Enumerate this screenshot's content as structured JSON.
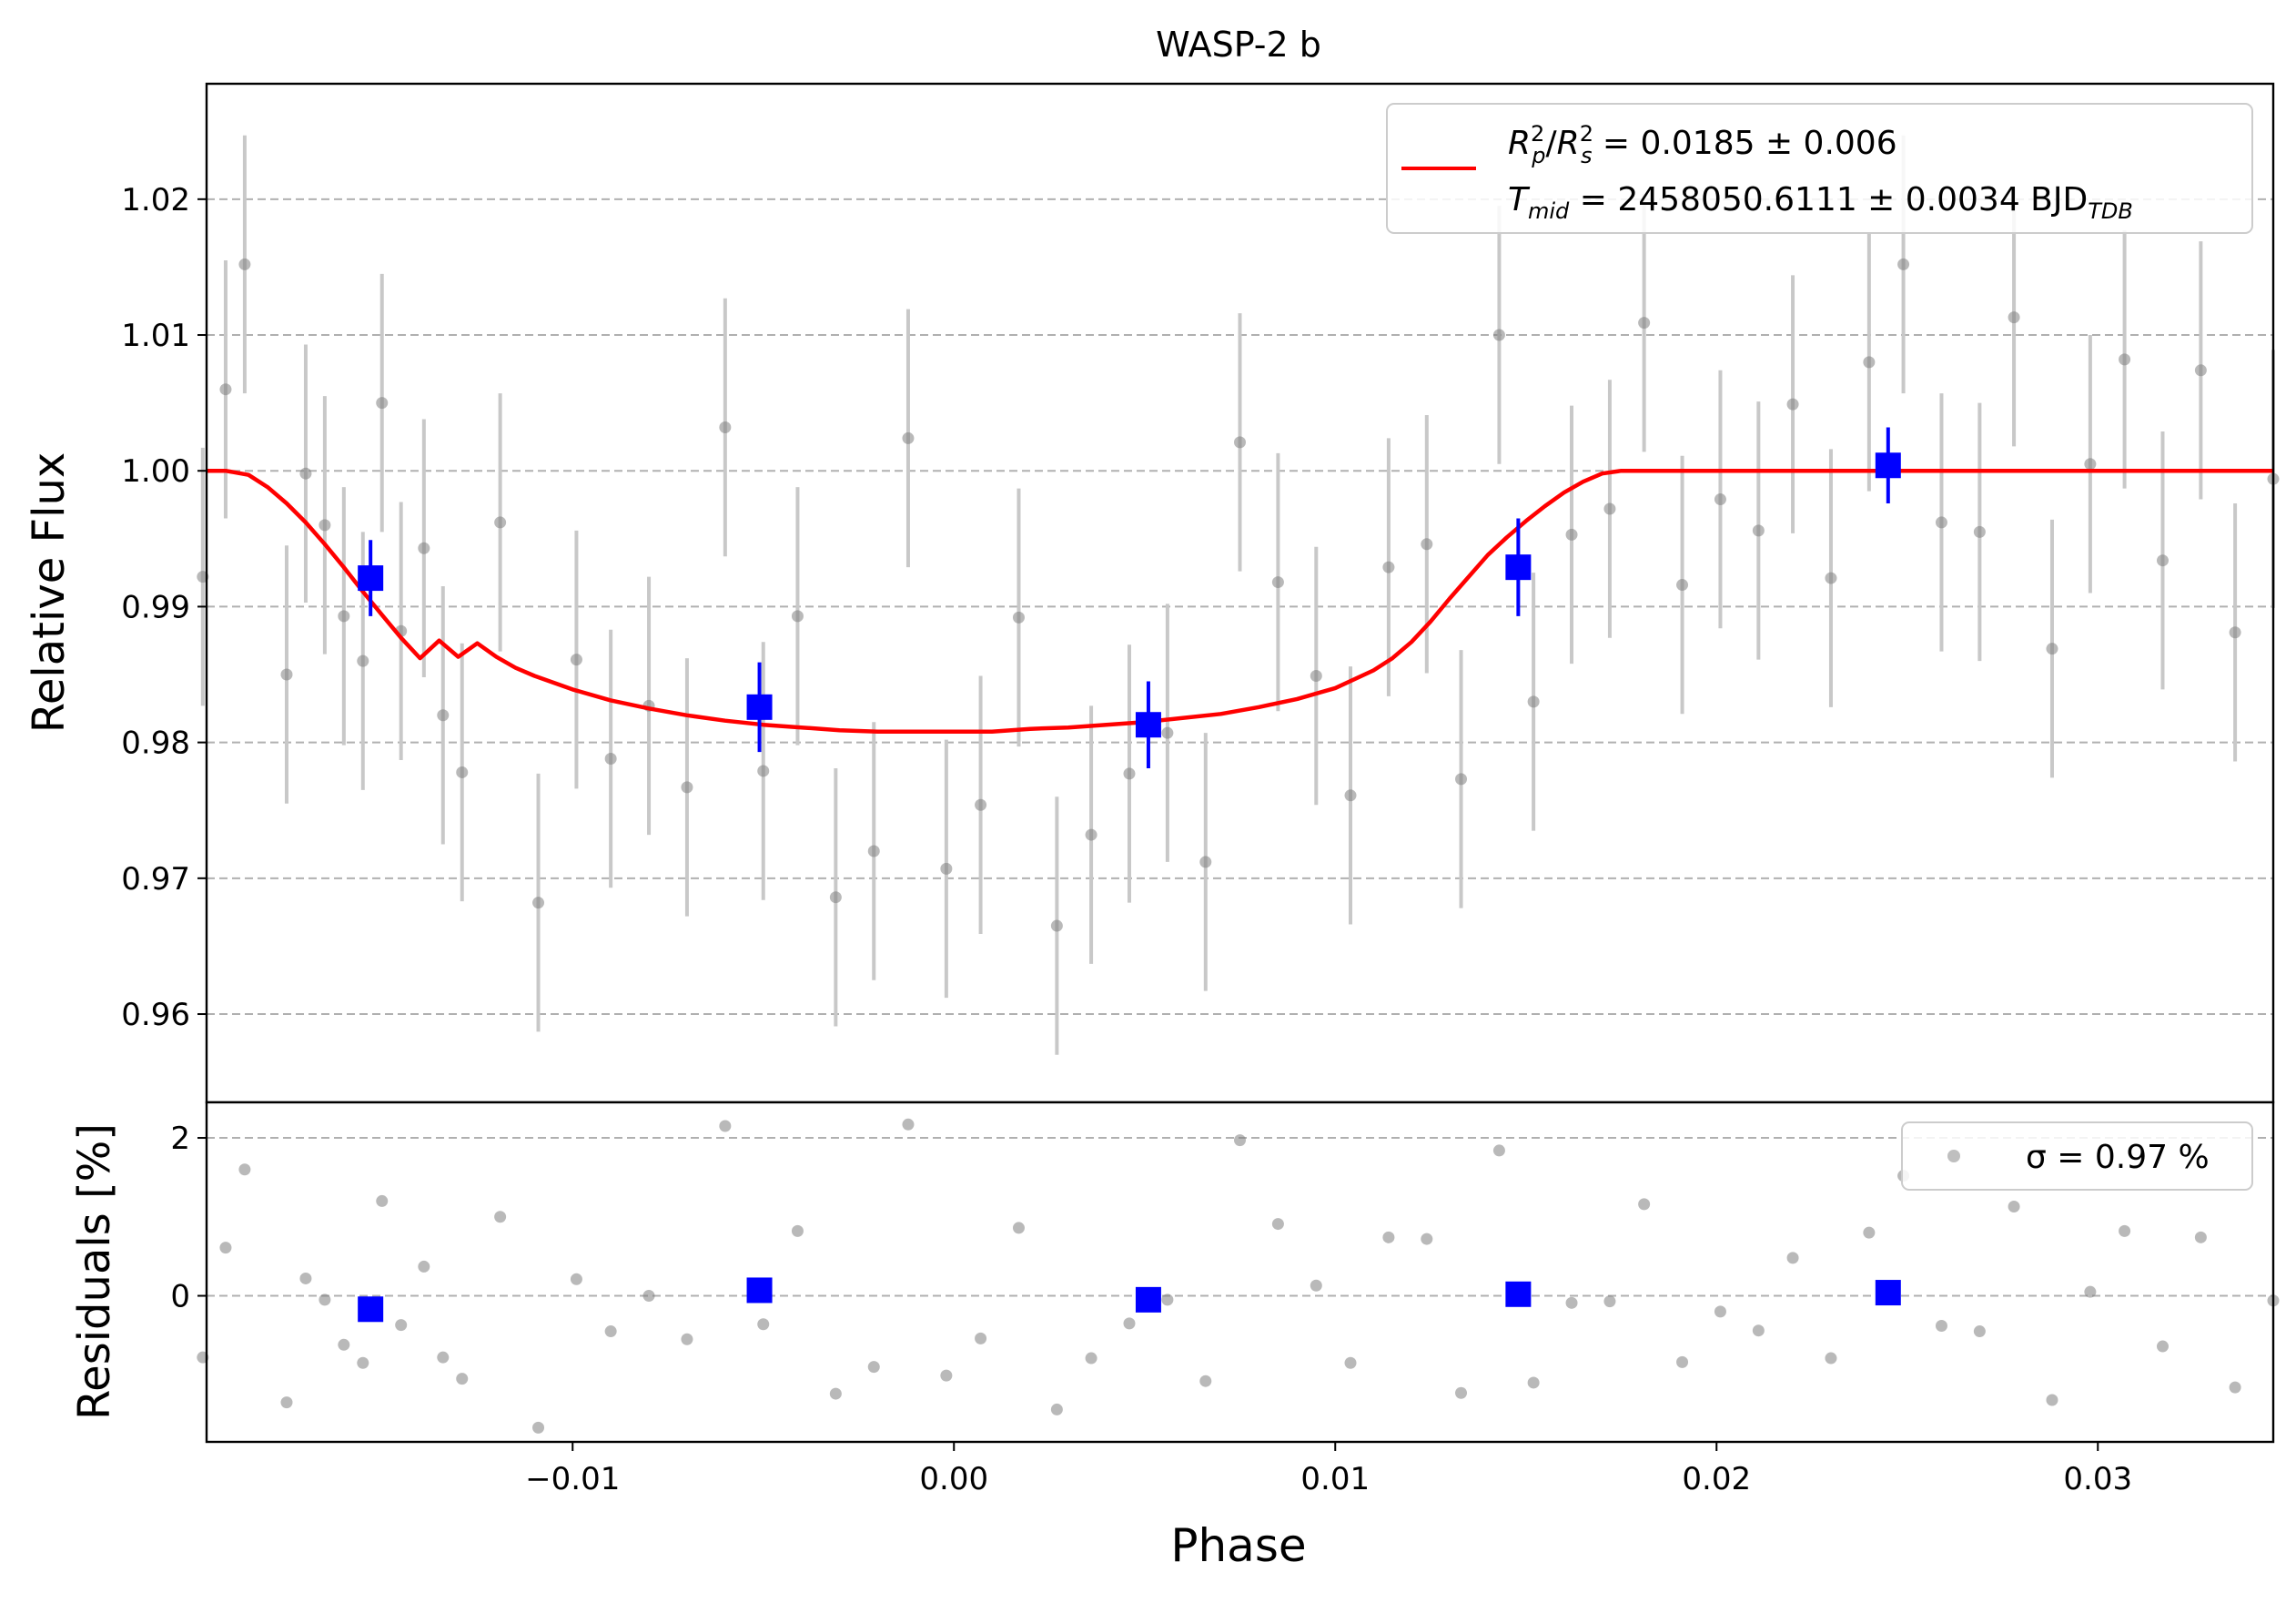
{
  "chart_data": [
    {
      "type": "scatter",
      "title": "WASP-2 b",
      "xlabel": "",
      "ylabel": "Relative Flux",
      "xlim": [
        -0.0196,
        0.0346
      ],
      "ylim": [
        0.9535,
        1.0285
      ],
      "y_ticks": [
        0.96,
        0.97,
        0.98,
        0.99,
        1.0,
        1.01,
        1.02
      ],
      "y_tick_labels": [
        "0.96",
        "0.97",
        "0.98",
        "0.99",
        "1.00",
        "1.01",
        "1.02"
      ],
      "grid": "horizontal dashed",
      "colors": {
        "data": "#808080",
        "errorbar": "#c8c8c8",
        "binned": "#0000ff",
        "model": "#ff0000"
      },
      "legend": {
        "placement": "top-right",
        "entries": [
          {
            "series": "model",
            "line1_main": "R",
            "line1_rest": " = 0.0185 ± 0.006",
            "line2_main": "T",
            "line2_sub": "mid",
            "line2_rest": " = 2458050.6111 ± 0.0034 BJD",
            "line2_unit_sub": "TDB"
          }
        ]
      },
      "series": [
        {
          "kind": "data_with_errorbars",
          "err": 0.0095,
          "x": [
            -0.0197,
            -0.0191,
            -0.0186,
            -0.0175,
            -0.017,
            -0.0165,
            -0.016,
            -0.0155,
            -0.015,
            -0.0145,
            -0.0139,
            -0.0134,
            -0.0129,
            -0.0119,
            -0.0109,
            -0.0099,
            -0.009,
            -0.008,
            -0.007,
            -0.006,
            -0.005,
            -0.0041,
            -0.0031,
            -0.0021,
            -0.0012,
            -0.0002,
            0.0007,
            0.0017,
            0.0027,
            0.0036,
            0.0046,
            0.0056,
            0.0066,
            0.0075,
            0.0085,
            0.0095,
            0.0104,
            0.0114,
            0.0124,
            0.0133,
            0.0143,
            0.0152,
            0.0162,
            0.0172,
            0.0181,
            0.0191,
            0.0201,
            0.0211,
            0.022,
            0.023,
            0.024,
            0.0249,
            0.0259,
            0.0269,
            0.0278,
            0.0288,
            0.0298,
            0.0307,
            0.0317,
            0.0327,
            0.0336,
            0.0346
          ],
          "y": [
            0.9922,
            1.006,
            1.0152,
            0.985,
            0.9998,
            0.996,
            0.9893,
            0.986,
            1.005,
            0.9882,
            0.9943,
            0.982,
            0.9778,
            0.9962,
            0.9682,
            0.9861,
            0.9788,
            0.9827,
            0.9767,
            1.0032,
            0.9779,
            0.9893,
            0.9686,
            0.972,
            1.0024,
            0.9707,
            0.9754,
            0.9892,
            0.9665,
            0.9732,
            0.9777,
            0.9807,
            0.9712,
            1.0021,
            0.9918,
            0.9849,
            0.9761,
            0.9929,
            0.9946,
            0.9773,
            1.01,
            0.983,
            0.9953,
            0.9972,
            1.0109,
            0.9916,
            0.9979,
            0.9956,
            1.0049,
            0.9921,
            1.008,
            1.0152,
            0.9962,
            0.9955,
            1.0113,
            0.9869,
            1.0005,
            1.0082,
            0.9934,
            1.0074,
            0.9881,
            0.9994
          ]
        },
        {
          "kind": "binned",
          "x": [
            -0.0153,
            -0.0051,
            0.0051,
            0.0148,
            0.0245
          ],
          "y": [
            0.9921,
            0.9826,
            0.9813,
            0.9929,
            1.0004
          ],
          "err": [
            0.0028,
            0.0033,
            0.0032,
            0.0036,
            0.0028
          ]
        },
        {
          "kind": "model",
          "x": [
            -0.0196,
            -0.0191,
            -0.0185,
            -0.018,
            -0.0175,
            -0.017,
            -0.0165,
            -0.016,
            -0.0155,
            -0.015,
            -0.0145,
            -0.014,
            -0.0135,
            -0.013,
            -0.0125,
            -0.012,
            -0.0115,
            -0.011,
            -0.01,
            -0.009,
            -0.008,
            -0.007,
            -0.006,
            -0.005,
            -0.004,
            -0.003,
            -0.002,
            -0.001,
            0.0,
            0.001,
            0.002,
            0.003,
            0.004,
            0.005,
            0.006,
            0.007,
            0.008,
            0.009,
            0.01,
            0.011,
            0.0115,
            0.012,
            0.0125,
            0.013,
            0.0135,
            0.014,
            0.0145,
            0.015,
            0.0155,
            0.016,
            0.0165,
            0.017,
            0.0175,
            0.018,
            0.0185,
            0.019,
            0.02,
            0.025,
            0.03,
            0.0346
          ],
          "y": [
            1.0,
            1.0,
            0.9997,
            0.9988,
            0.9976,
            0.9962,
            0.9946,
            0.9929,
            0.9911,
            0.9894,
            0.9877,
            0.9862,
            0.9875,
            0.9863,
            0.9873,
            0.9863,
            0.9855,
            0.9849,
            0.9839,
            0.9831,
            0.9825,
            0.982,
            0.9816,
            0.9813,
            0.9811,
            0.9809,
            0.9808,
            0.9808,
            0.9808,
            0.9808,
            0.981,
            0.9811,
            0.9813,
            0.9815,
            0.9818,
            0.9821,
            0.9826,
            0.9832,
            0.984,
            0.9853,
            0.9862,
            0.9874,
            0.9889,
            0.9906,
            0.9922,
            0.9938,
            0.9951,
            0.9963,
            0.9974,
            0.9984,
            0.9992,
            0.9998,
            1.0,
            1.0,
            1.0,
            1.0,
            1.0,
            1.0,
            1.0,
            1.0
          ]
        }
      ]
    },
    {
      "type": "scatter",
      "title": "",
      "xlabel": "Phase",
      "ylabel": "Residuals [%]",
      "xlim": [
        -0.0196,
        0.0346
      ],
      "ylim": [
        -1.85,
        2.45
      ],
      "y_ticks": [
        0,
        2
      ],
      "y_tick_labels": [
        "0",
        "2"
      ],
      "x_ticks": [
        -0.01,
        0.0,
        0.01,
        0.02,
        0.03
      ],
      "x_tick_labels": [
        "−0.01",
        "0.00",
        "0.01",
        "0.02",
        "0.03"
      ],
      "grid": "horizontal dashed",
      "legend": {
        "placement": "top-right",
        "entries": [
          {
            "series": "residuals",
            "label": "σ = 0.97 %"
          }
        ]
      },
      "series": [
        {
          "kind": "residuals",
          "x": [
            -0.0197,
            -0.0191,
            -0.0186,
            -0.0175,
            -0.017,
            -0.0165,
            -0.016,
            -0.0155,
            -0.015,
            -0.0145,
            -0.0139,
            -0.0134,
            -0.0129,
            -0.0119,
            -0.0109,
            -0.0099,
            -0.009,
            -0.008,
            -0.007,
            -0.006,
            -0.005,
            -0.0041,
            -0.0031,
            -0.0021,
            -0.0012,
            -0.0002,
            0.0007,
            0.0017,
            0.0027,
            0.0036,
            0.0046,
            0.0056,
            0.0066,
            0.0075,
            0.0085,
            0.0095,
            0.0104,
            0.0114,
            0.0124,
            0.0133,
            0.0143,
            0.0152,
            0.0162,
            0.0172,
            0.0181,
            0.0191,
            0.0201,
            0.0211,
            0.022,
            0.023,
            0.024,
            0.0249,
            0.0259,
            0.0269,
            0.0278,
            0.0288,
            0.0298,
            0.0307,
            0.0317,
            0.0327,
            0.0336,
            0.0346
          ],
          "y": [
            -0.78,
            0.61,
            1.6,
            -1.35,
            0.22,
            -0.05,
            -0.62,
            -0.85,
            1.2,
            -0.37,
            0.37,
            -0.78,
            -1.05,
            1.0,
            -1.67,
            0.21,
            -0.45,
            0.0,
            -0.55,
            2.15,
            -0.36,
            0.82,
            -1.24,
            -0.9,
            2.17,
            -1.01,
            -0.54,
            0.86,
            -1.44,
            -0.79,
            -0.35,
            -0.05,
            -1.08,
            1.97,
            0.91,
            0.13,
            -0.85,
            0.74,
            0.72,
            -1.23,
            1.84,
            -1.1,
            -0.09,
            -0.07,
            1.16,
            -0.84,
            -0.2,
            -0.44,
            0.48,
            -0.79,
            0.8,
            1.52,
            -0.38,
            -0.45,
            1.13,
            -1.32,
            0.05,
            0.82,
            -0.64,
            0.74,
            -1.16,
            -0.06
          ]
        },
        {
          "kind": "binned",
          "x": [
            -0.0153,
            -0.0051,
            0.0051,
            0.0148,
            0.0245
          ],
          "y": [
            -0.17,
            0.07,
            -0.05,
            0.02,
            0.04
          ]
        }
      ]
    }
  ]
}
